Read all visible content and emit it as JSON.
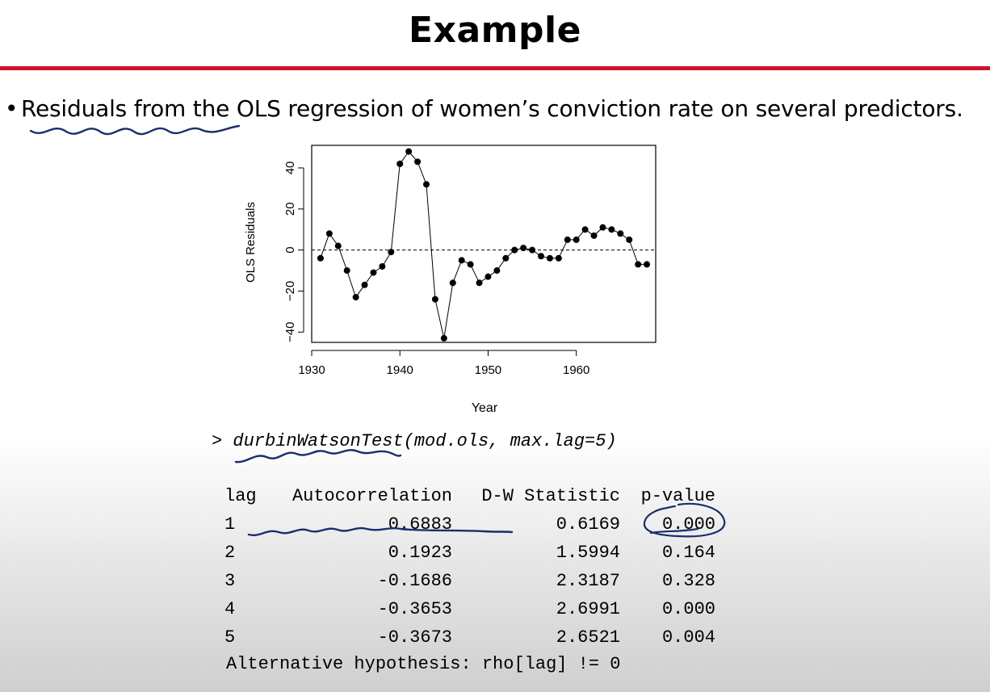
{
  "slide": {
    "title": "Example",
    "accent_color": "#d0142c",
    "bullet": "Residuals from the OLS regression of women’s conviction rate on several predictors."
  },
  "chart_data": {
    "type": "line",
    "xlabel": "Year",
    "ylabel": "OLS Residuals",
    "xlim": [
      1930,
      1969
    ],
    "ylim": [
      -45,
      51
    ],
    "x_ticks": [
      "1930",
      "1940",
      "1950",
      "1960"
    ],
    "y_ticks": [
      "−40",
      "−20",
      "0",
      "20",
      "40"
    ],
    "reference_line": {
      "y": 0,
      "style": "dashed"
    },
    "series": [
      {
        "x": [
          1931,
          1932,
          1933,
          1934,
          1935,
          1936,
          1937,
          1938,
          1939,
          1940,
          1941,
          1942,
          1943,
          1944,
          1945,
          1946,
          1947,
          1948,
          1949,
          1950,
          1951,
          1952,
          1953,
          1954,
          1955,
          1956,
          1957,
          1958,
          1959,
          1960,
          1961,
          1962,
          1963,
          1964,
          1965,
          1966,
          1967,
          1968
        ],
        "y": [
          -4,
          8,
          2,
          -10,
          -23,
          -17,
          -11,
          -8,
          -1,
          42,
          48,
          43,
          32,
          -24,
          -43,
          -16,
          -5,
          -7,
          -16,
          -13,
          -10,
          -4,
          0,
          1,
          0,
          -3,
          -4,
          -4,
          5,
          5,
          10,
          7,
          11,
          10,
          8,
          5,
          -7,
          -7
        ]
      }
    ]
  },
  "console": {
    "prompt": ">",
    "command": "durbinWatsonTest(mod.ols, max.lag=5)",
    "table": {
      "headers": [
        "lag",
        "Autocorrelation",
        "D-W Statistic",
        "p-value"
      ],
      "rows": [
        [
          "1",
          "0.6883",
          "0.6169",
          "0.000"
        ],
        [
          "2",
          "0.1923",
          "1.5994",
          "0.164"
        ],
        [
          "3",
          "-0.1686",
          "2.3187",
          "0.328"
        ],
        [
          "4",
          "-0.3653",
          "2.6991",
          "0.000"
        ],
        [
          "5",
          "-0.3673",
          "2.6521",
          "0.004"
        ]
      ]
    },
    "alternative": "Alternative hypothesis: rho[lag] != 0"
  },
  "annotations": {
    "ink_color": "#1b2d6b"
  }
}
